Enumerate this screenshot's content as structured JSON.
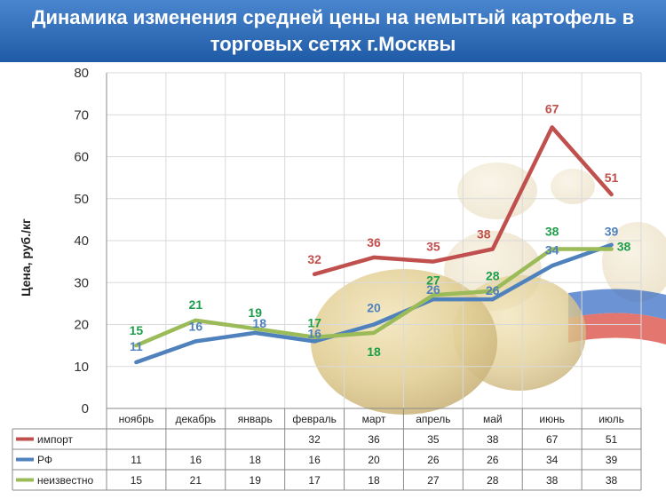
{
  "title": "Динамика изменения средней цены на немытый картофель в торговых сетях г.Москвы",
  "chart_data": {
    "type": "line",
    "title": "Динамика изменения средней цены на немытый картофель в торговых сетях г.Москвы",
    "xlabel": "",
    "ylabel": "Цена, руб./кг",
    "ylim": [
      0,
      80
    ],
    "yticks": [
      0,
      10,
      20,
      30,
      40,
      50,
      60,
      70,
      80
    ],
    "grid": true,
    "legend": "data-table",
    "categories": [
      "ноябрь",
      "декабрь",
      "январь",
      "февраль",
      "март",
      "апрель",
      "май",
      "июнь",
      "июль"
    ],
    "series": [
      {
        "name": "импорт",
        "color": "#c0504d",
        "label_color": "#c0504d",
        "values": [
          null,
          null,
          null,
          32,
          36,
          35,
          38,
          67,
          51
        ]
      },
      {
        "name": "РФ",
        "color": "#4f81bd",
        "label_color": "#4f81bd",
        "values": [
          11,
          16,
          18,
          16,
          20,
          26,
          26,
          34,
          39
        ]
      },
      {
        "name": "неизвестно",
        "color": "#9bbb59",
        "label_color": "#1e9e4a",
        "values": [
          15,
          21,
          19,
          17,
          18,
          27,
          28,
          38,
          38
        ]
      }
    ],
    "data_labels": {
      "РФ": [
        "11",
        "16",
        "18",
        "16",
        "20",
        "26",
        "26",
        "34",
        "39"
      ],
      "неизвестно": [
        "15",
        "21",
        "19",
        "17",
        "18",
        "27",
        "28",
        "38",
        "38"
      ],
      "импорт": [
        "",
        "",
        "",
        "32",
        "36",
        "35",
        "38",
        "67",
        "51"
      ]
    }
  }
}
